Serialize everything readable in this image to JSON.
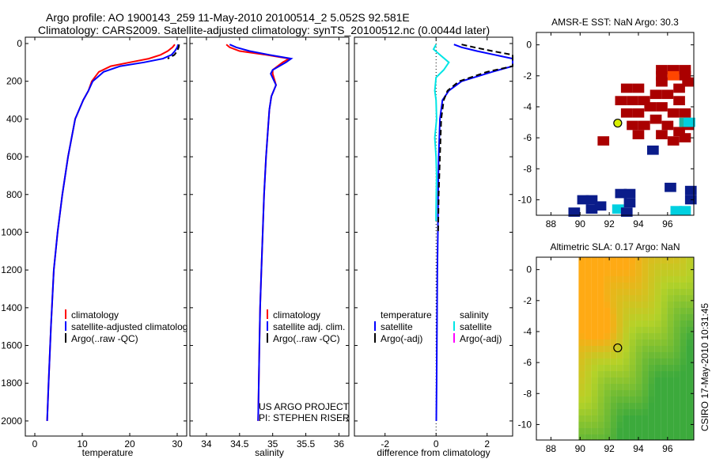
{
  "header": {
    "line1": "Argo profile: AO 1900143_259 11-May-2010 20100514_2 5.052S 92.581E",
    "line2": "Climatology: CARS2009. Satellite-adjusted climatology: synTS_20100512.nc (0.0044d later)"
  },
  "colors": {
    "climatology": "#ff0000",
    "satellite": "#0000ff",
    "argo": "#000000",
    "sal_satellite": "#00e5e5",
    "sal_argo": "#ff00ff"
  },
  "chart_data": [
    {
      "id": "temperature-panel",
      "type": "line",
      "xlabel": "temperature",
      "ylabel": "",
      "xlim": [
        -2,
        32
      ],
      "ylim": [
        2080,
        0
      ],
      "xticks": [
        0,
        10,
        20,
        30
      ],
      "yticks": [
        0,
        200,
        400,
        600,
        800,
        1000,
        1200,
        1400,
        1600,
        1800,
        2000
      ],
      "legend": [
        "climatology",
        "satellite-adjusted climatolog",
        "Argo(..raw -QC)"
      ],
      "series": [
        {
          "name": "climatology",
          "color": "#ff0000",
          "x": [
            29.5,
            29.0,
            28.0,
            26.5,
            24.0,
            20.0,
            16.0,
            13.5,
            12.0,
            11.3,
            10.2,
            8.5,
            7.0,
            5.8,
            4.8,
            4.0,
            3.4,
            2.9,
            2.6
          ],
          "y": [
            5,
            20,
            40,
            60,
            80,
            100,
            120,
            150,
            200,
            250,
            300,
            400,
            600,
            800,
            1000,
            1200,
            1500,
            1800,
            2000
          ]
        },
        {
          "name": "satellite-adjusted climatology",
          "color": "#0000ff",
          "x": [
            30.2,
            30.0,
            29.5,
            28.8,
            27.0,
            23.0,
            18.0,
            14.5,
            12.2,
            11.3,
            10.2,
            8.5,
            7.0,
            5.8,
            4.8,
            4.0,
            3.4,
            2.9,
            2.6
          ],
          "y": [
            5,
            20,
            40,
            60,
            80,
            100,
            120,
            150,
            200,
            250,
            300,
            400,
            600,
            800,
            1000,
            1200,
            1500,
            1800,
            2000
          ]
        },
        {
          "name": "Argo(..raw -QC)",
          "color": "#000000",
          "dashed": true,
          "x": [
            30.4,
            30.3,
            30.0,
            29.4,
            28.0
          ],
          "y": [
            5,
            20,
            40,
            60,
            80
          ]
        }
      ]
    },
    {
      "id": "salinity-panel",
      "type": "line",
      "xlabel": "salinity",
      "ylabel": "",
      "xlim": [
        33.75,
        36.15
      ],
      "ylim": [
        2080,
        0
      ],
      "xticks": [
        34,
        34.5,
        35,
        35.5,
        36
      ],
      "xtick_labels": [
        "34",
        "34.5",
        "35",
        "35.5",
        "36"
      ],
      "legend": [
        "climatology",
        "satellite adj. clim.",
        "Argo(..raw -QC)"
      ],
      "annotation": [
        "US ARGO PROJECT",
        "PI: STEPHEN RISER"
      ],
      "series": [
        {
          "name": "climatology",
          "color": "#ff0000",
          "x": [
            34.3,
            34.35,
            34.5,
            34.9,
            35.25,
            35.15,
            35.0,
            35.0,
            35.05,
            34.98,
            34.95,
            34.93,
            34.9,
            34.87,
            34.85,
            34.83,
            34.81,
            34.8,
            34.79,
            34.78
          ],
          "y": [
            5,
            20,
            40,
            60,
            80,
            100,
            140,
            160,
            220,
            280,
            350,
            450,
            600,
            800,
            1000,
            1200,
            1400,
            1600,
            1800,
            2000
          ]
        },
        {
          "name": "satellite adj. clim.",
          "color": "#0000ff",
          "x": [
            34.35,
            34.45,
            34.65,
            34.95,
            35.28,
            35.2,
            35.0,
            34.97,
            35.05,
            34.98,
            34.95,
            34.93,
            34.9,
            34.87,
            34.85,
            34.83,
            34.81,
            34.8,
            34.79,
            34.78
          ],
          "y": [
            5,
            20,
            40,
            60,
            80,
            100,
            140,
            160,
            220,
            280,
            350,
            450,
            600,
            800,
            1000,
            1200,
            1400,
            1600,
            1800,
            2000
          ]
        }
      ]
    },
    {
      "id": "difference-panel",
      "type": "line",
      "xlabel": "difference from climatology",
      "ylabel": "",
      "xlim": [
        -3.2,
        3.0
      ],
      "ylim": [
        2080,
        0
      ],
      "xticks": [
        -2,
        0,
        2
      ],
      "legend_temperature": [
        "temperature",
        "satellite",
        "Argo(-adj)"
      ],
      "legend_salinity": [
        "salinity",
        "satellite",
        "Argo(-adj)"
      ],
      "series": [
        {
          "name": "temperature satellite",
          "color": "#0000ff",
          "x": [
            0.7,
            1.0,
            1.6,
            2.3,
            3.0,
            3.0,
            2.2,
            1.0,
            0.5,
            0.25,
            0.15,
            0.1,
            0.08,
            0.07,
            0.05,
            0.04,
            0.03,
            0.02,
            0.01
          ],
          "y": [
            5,
            20,
            40,
            60,
            80,
            120,
            150,
            200,
            250,
            300,
            400,
            600,
            800,
            1000,
            1200,
            1400,
            1600,
            1800,
            2000
          ]
        },
        {
          "name": "temperature Argo(-adj)",
          "color": "#000000",
          "dashed": true,
          "x": [
            1.0,
            1.5,
            2.2,
            3.0,
            3.0,
            2.0,
            0.9,
            0.45,
            0.3,
            0.2,
            0.15,
            0.1,
            0.08
          ],
          "y": [
            5,
            20,
            40,
            60,
            120,
            150,
            200,
            250,
            300,
            400,
            600,
            800,
            1000
          ]
        },
        {
          "name": "salinity satellite",
          "color": "#00e5e5",
          "x": [
            0.0,
            -0.1,
            0.15,
            0.5,
            0.3,
            0.0,
            -0.05,
            0.0,
            0.02,
            -0.05,
            0.0,
            0.02,
            0.01,
            0.0,
            0.0,
            0.0,
            0.0
          ],
          "y": [
            5,
            30,
            60,
            100,
            140,
            180,
            250,
            300,
            400,
            500,
            600,
            700,
            800,
            900,
            920,
            930,
            940
          ]
        }
      ]
    },
    {
      "id": "sst-map",
      "type": "heatmap",
      "title": "AMSR-E SST: NaN Argo: 30.3",
      "xlim": [
        87,
        97.8
      ],
      "ylim": [
        -11,
        0.8
      ],
      "xticks": [
        88,
        90,
        92,
        94,
        96
      ],
      "yticks": [
        0,
        -2,
        -4,
        -6,
        -8,
        -10
      ],
      "marker": {
        "lon": 92.581,
        "lat": -5.052
      },
      "cells": [
        {
          "lon": 95.6,
          "lat": -1.6,
          "v": "warm"
        },
        {
          "lon": 96.4,
          "lat": -1.6,
          "v": "warm"
        },
        {
          "lon": 97.2,
          "lat": -1.6,
          "v": "warm"
        },
        {
          "lon": 95.6,
          "lat": -2.0,
          "v": "warm"
        },
        {
          "lon": 96.4,
          "lat": -2.0,
          "v": "hot"
        },
        {
          "lon": 97.2,
          "lat": -2.0,
          "v": "warm"
        },
        {
          "lon": 93.2,
          "lat": -2.8,
          "v": "warm"
        },
        {
          "lon": 94.0,
          "lat": -2.8,
          "v": "warm"
        },
        {
          "lon": 95.6,
          "lat": -2.4,
          "v": "warm"
        },
        {
          "lon": 96.8,
          "lat": -2.8,
          "v": "warm"
        },
        {
          "lon": 97.4,
          "lat": -2.4,
          "v": "warm"
        },
        {
          "lon": 92.8,
          "lat": -3.6,
          "v": "warm"
        },
        {
          "lon": 93.6,
          "lat": -3.6,
          "v": "warm"
        },
        {
          "lon": 94.4,
          "lat": -3.6,
          "v": "warm"
        },
        {
          "lon": 95.2,
          "lat": -3.2,
          "v": "warm"
        },
        {
          "lon": 96.0,
          "lat": -3.2,
          "v": "warm"
        },
        {
          "lon": 96.8,
          "lat": -3.6,
          "v": "warm"
        },
        {
          "lon": 93.2,
          "lat": -4.4,
          "v": "warm"
        },
        {
          "lon": 94.0,
          "lat": -4.4,
          "v": "warm"
        },
        {
          "lon": 94.8,
          "lat": -4.0,
          "v": "warm"
        },
        {
          "lon": 95.6,
          "lat": -4.0,
          "v": "warm"
        },
        {
          "lon": 96.4,
          "lat": -4.4,
          "v": "warm"
        },
        {
          "lon": 97.2,
          "lat": -4.4,
          "v": "warm"
        },
        {
          "lon": 93.6,
          "lat": -5.2,
          "v": "warm"
        },
        {
          "lon": 94.4,
          "lat": -5.2,
          "v": "warm"
        },
        {
          "lon": 95.2,
          "lat": -4.8,
          "v": "warm"
        },
        {
          "lon": 96.0,
          "lat": -5.2,
          "v": "warm"
        },
        {
          "lon": 96.8,
          "lat": -5.6,
          "v": "warm"
        },
        {
          "lon": 97.4,
          "lat": -5.2,
          "v": "warm"
        },
        {
          "lon": 94.0,
          "lat": -5.8,
          "v": "warm"
        },
        {
          "lon": 95.6,
          "lat": -5.8,
          "v": "warm"
        },
        {
          "lon": 96.4,
          "lat": -6.2,
          "v": "warm"
        },
        {
          "lon": 91.6,
          "lat": -6.2,
          "v": "warm"
        },
        {
          "lon": 97.2,
          "lat": -6.0,
          "v": "warm"
        },
        {
          "lon": 97.2,
          "lat": -5.0,
          "v": "mid"
        },
        {
          "lon": 97.5,
          "lat": -5.0,
          "v": "cool"
        },
        {
          "lon": 95.0,
          "lat": -6.8,
          "v": "cold"
        },
        {
          "lon": 96.2,
          "lat": -9.2,
          "v": "cold"
        },
        {
          "lon": 97.6,
          "lat": -9.4,
          "v": "cold"
        },
        {
          "lon": 97.6,
          "lat": -10.0,
          "v": "cold"
        },
        {
          "lon": 92.8,
          "lat": -9.6,
          "v": "cold"
        },
        {
          "lon": 93.4,
          "lat": -9.6,
          "v": "cold"
        },
        {
          "lon": 93.4,
          "lat": -10.2,
          "v": "cold"
        },
        {
          "lon": 90.2,
          "lat": -10.0,
          "v": "cold"
        },
        {
          "lon": 90.8,
          "lat": -10.0,
          "v": "cold"
        },
        {
          "lon": 91.4,
          "lat": -10.4,
          "v": "cold"
        },
        {
          "lon": 90.8,
          "lat": -10.6,
          "v": "cold"
        },
        {
          "lon": 89.6,
          "lat": -10.8,
          "v": "cold"
        },
        {
          "lon": 92.6,
          "lat": -10.6,
          "v": "cool"
        },
        {
          "lon": 93.2,
          "lat": -10.8,
          "v": "cold"
        },
        {
          "lon": 96.6,
          "lat": -10.7,
          "v": "cool"
        },
        {
          "lon": 97.2,
          "lat": -10.7,
          "v": "cool"
        }
      ]
    },
    {
      "id": "sla-map",
      "type": "heatmap",
      "title": "Altimetric SLA: 0.17 Argo: NaN",
      "xlim": [
        87,
        97.8
      ],
      "ylim": [
        -11,
        0.8
      ],
      "xticks": [
        88,
        90,
        92,
        94,
        96
      ],
      "yticks": [
        0,
        -2,
        -4,
        -6,
        -8,
        -10
      ],
      "marker": {
        "lon": 92.581,
        "lat": -5.052
      },
      "data_west_edge_lon": 89.9
    }
  ],
  "footer": {
    "stamp": "CSIRO 17-May-2010 10:31:45"
  }
}
